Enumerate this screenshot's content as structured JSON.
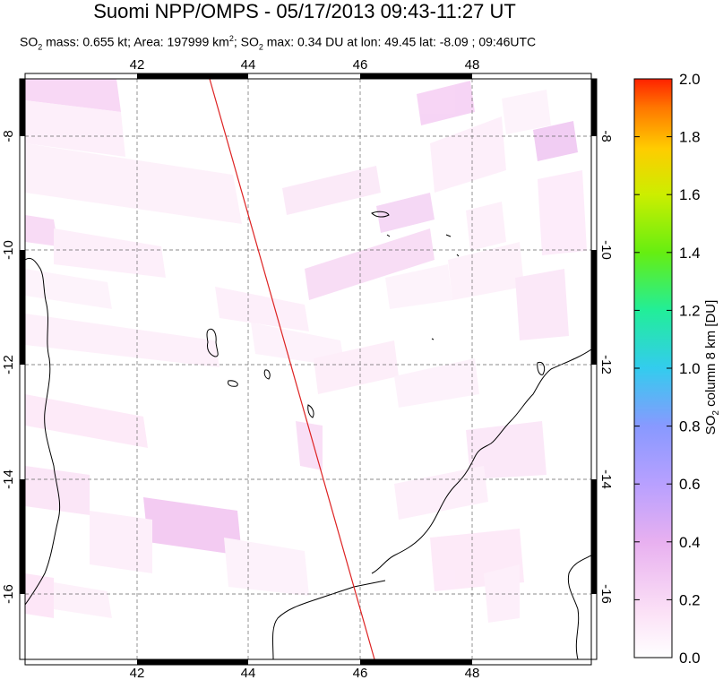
{
  "title": "Suomi NPP/OMPS - 05/17/2013 09:43-11:27 UT",
  "subtitle": {
    "mass_label": "SO",
    "mass_sub": "2",
    "mass_text": " mass: 0.655 kt; Area: 197999 km",
    "area_sup": "2",
    "max_label": "; SO",
    "max_sub": "2",
    "max_text": " max: 0.34 DU at lon: 49.45 lat: -8.09 ; 09:46UTC"
  },
  "map": {
    "lon_ticks": [
      "42",
      "44",
      "46",
      "48"
    ],
    "lat_ticks": [
      "-8",
      "-10",
      "-12",
      "-14",
      "-16"
    ],
    "lon_values": [
      42,
      44,
      46,
      48
    ],
    "lat_values": [
      -8,
      -10,
      -12,
      -14,
      -16
    ],
    "lon_range": [
      40,
      50
    ],
    "lat_range": [
      -17.2,
      -7
    ]
  },
  "colorbar": {
    "label_main": "SO",
    "label_sub": "2",
    "label_rest": " column 8 km [DU]",
    "ticks": [
      "2.0",
      "1.8",
      "1.6",
      "1.4",
      "1.2",
      "1.0",
      "0.8",
      "0.6",
      "0.4",
      "0.2",
      "0.0"
    ],
    "tick_values": [
      2.0,
      1.8,
      1.6,
      1.4,
      1.2,
      1.0,
      0.8,
      0.6,
      0.4,
      0.2,
      0.0
    ],
    "range": [
      0,
      2
    ],
    "colors": [
      "#ffffff",
      "#f7c8f0",
      "#cc99ff",
      "#7788ff",
      "#22ccee",
      "#33ee88",
      "#66ee11",
      "#ccee00",
      "#ffcc00",
      "#ff8800",
      "#ff2200"
    ]
  }
}
